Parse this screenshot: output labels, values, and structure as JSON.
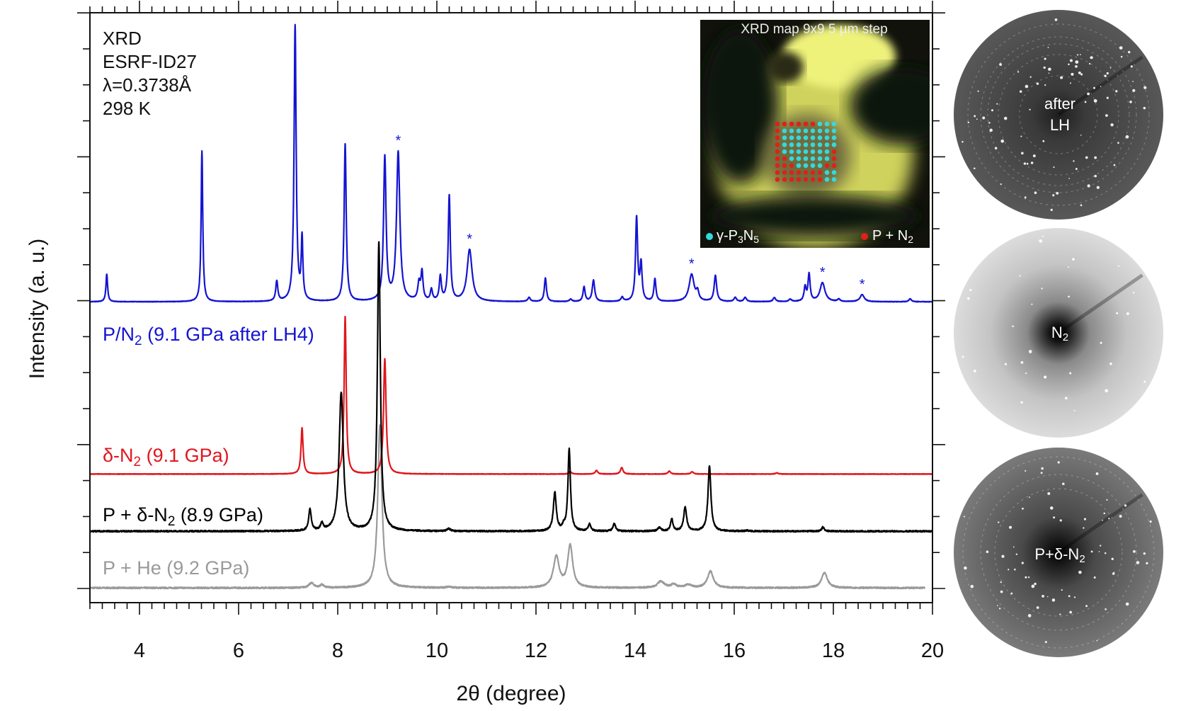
{
  "chart_data": {
    "type": "line",
    "title": "",
    "xlabel": "2θ (degree)",
    "ylabel": "Intensity (a. u.)",
    "xlim": [
      3,
      20
    ],
    "ylim": [
      0,
      100
    ],
    "grid": false,
    "xticks": [
      {
        "value": 4,
        "label": "4"
      },
      {
        "value": 6,
        "label": "6"
      },
      {
        "value": 8,
        "label": "8"
      },
      {
        "value": 10,
        "label": "10"
      },
      {
        "value": 12,
        "label": "12"
      },
      {
        "value": 14,
        "label": "14"
      },
      {
        "value": 16,
        "label": "16"
      },
      {
        "value": 18,
        "label": "18"
      },
      {
        "value": 20,
        "label": "20"
      }
    ],
    "info_lines": [
      "XRD",
      "ESRF-ID27",
      "λ=0.3738Å",
      "298 K"
    ],
    "series": [
      {
        "id": "p-he",
        "label_pre": "P + He (9.2 GPa)",
        "label_sub": "",
        "label_post": "",
        "color": "#9a9a9a",
        "offset": 2.5,
        "xmax": 19.85,
        "peaks": [
          [
            7.47,
            0.8,
            0.06
          ],
          [
            7.68,
            0.5,
            0.04
          ],
          [
            8.85,
            27.6,
            0.05
          ],
          [
            10.24,
            0.2,
            0.05
          ],
          [
            12.41,
            5.2,
            0.07
          ],
          [
            12.69,
            7.1,
            0.06
          ],
          [
            14.52,
            1.1,
            0.08
          ],
          [
            14.78,
            0.6,
            0.06
          ],
          [
            15.07,
            0.5,
            0.08
          ],
          [
            15.52,
            2.8,
            0.07
          ],
          [
            17.82,
            2.6,
            0.07
          ]
        ]
      },
      {
        "id": "p-delta-n2",
        "label_pre": "P + δ-N",
        "label_sub": "2",
        "label_post": " (8.9 GPa)",
        "color": "#000000",
        "offset": 12.1,
        "xmax": 20,
        "peaks": [
          [
            7.44,
            3.7,
            0.03
          ],
          [
            7.68,
            1.2,
            0.03
          ],
          [
            8.07,
            23.5,
            0.05
          ],
          [
            8.83,
            49.0,
            0.035
          ],
          [
            10.24,
            0.4,
            0.04
          ],
          [
            12.38,
            6.5,
            0.035
          ],
          [
            12.56,
            0.7,
            0.03
          ],
          [
            12.67,
            13.9,
            0.03
          ],
          [
            13.08,
            1.2,
            0.03
          ],
          [
            13.58,
            1.3,
            0.03
          ],
          [
            14.49,
            0.6,
            0.04
          ],
          [
            14.74,
            2.0,
            0.03
          ],
          [
            15.01,
            4.1,
            0.035
          ],
          [
            15.5,
            11.0,
            0.035
          ],
          [
            16.26,
            0.1,
            0.04
          ],
          [
            17.79,
            0.7,
            0.03
          ]
        ]
      },
      {
        "id": "delta-n2",
        "label_pre": "δ-N",
        "label_sub": "2",
        "label_post": " (9.1 GPa)",
        "color": "#e0161c",
        "offset": 21.8,
        "xmax": 20,
        "peaks": [
          [
            7.28,
            7.8,
            0.025
          ],
          [
            8.15,
            26.8,
            0.025
          ],
          [
            8.95,
            19.6,
            0.03
          ],
          [
            12.69,
            0.4,
            0.03
          ],
          [
            13.22,
            0.6,
            0.03
          ],
          [
            13.73,
            1.1,
            0.03
          ],
          [
            14.69,
            0.5,
            0.03
          ],
          [
            15.15,
            0.4,
            0.03
          ],
          [
            16.86,
            0.2,
            0.03
          ]
        ]
      },
      {
        "id": "p-n2-after-lh4",
        "label_pre": "P/N",
        "label_sub": "2",
        "label_post": " (9.1 GPa after LH4)",
        "color": "#1414d2",
        "offset": 51.0,
        "xmax": 20,
        "peaks": [
          [
            3.34,
            4.7,
            0.02
          ],
          [
            5.26,
            25.6,
            0.02
          ],
          [
            6.77,
            3.4,
            0.025
          ],
          [
            7.14,
            46.7,
            0.025
          ],
          [
            7.28,
            10.3,
            0.02
          ],
          [
            8.15,
            26.8,
            0.025
          ],
          [
            8.95,
            24.4,
            0.03
          ],
          [
            9.22,
            25.2,
            0.04
          ],
          [
            9.64,
            2.9,
            0.03
          ],
          [
            9.7,
            4.7,
            0.025
          ],
          [
            9.89,
            1.9,
            0.025
          ],
          [
            10.07,
            4.1,
            0.025
          ],
          [
            10.25,
            17.9,
            0.025
          ],
          [
            10.66,
            8.8,
            0.06
          ],
          [
            11.86,
            0.7,
            0.03
          ],
          [
            12.19,
            4.0,
            0.025
          ],
          [
            12.7,
            0.4,
            0.03
          ],
          [
            12.97,
            2.5,
            0.025
          ],
          [
            13.16,
            3.6,
            0.03
          ],
          [
            13.74,
            0.7,
            0.03
          ],
          [
            14.03,
            14.2,
            0.025
          ],
          [
            14.12,
            6.2,
            0.025
          ],
          [
            14.4,
            3.8,
            0.025
          ],
          [
            15.14,
            4.6,
            0.06
          ],
          [
            15.26,
            1.4,
            0.03
          ],
          [
            15.62,
            4.4,
            0.03
          ],
          [
            16.02,
            0.7,
            0.03
          ],
          [
            16.22,
            0.7,
            0.03
          ],
          [
            16.81,
            0.7,
            0.03
          ],
          [
            17.13,
            0.4,
            0.03
          ],
          [
            17.43,
            2.4,
            0.025
          ],
          [
            17.51,
            4.6,
            0.025
          ],
          [
            17.78,
            3.2,
            0.06
          ],
          [
            18.11,
            0.4,
            0.03
          ],
          [
            18.58,
            1.2,
            0.05
          ],
          [
            19.55,
            0.5,
            0.03
          ]
        ]
      }
    ],
    "asterisks": {
      "series": "p-n2-after-lh4",
      "text": "*",
      "positions": [
        9.22,
        10.66,
        15.14,
        17.78,
        18.58
      ]
    }
  },
  "inset": {
    "title": "XRD map 9x9 5 µm step",
    "legend": [
      {
        "pre": "γ-P",
        "sub1": "3",
        "mid": "N",
        "sub2": "5",
        "color": "#35d8e0"
      },
      {
        "pre": "P + N",
        "sub1": "2",
        "color": "#e0201a"
      }
    ],
    "map_rows": [
      "RRRRRRCCC",
      "RCCCCCCCC",
      "RCCCCCCCC",
      "RCCCCCCCC",
      "RCCCCCCCR",
      "RRCCCCCCR",
      "RRRCCCCRR",
      "RRRRRRRCC",
      "RRRRRRRCC"
    ]
  },
  "patterns": [
    {
      "line1": "after",
      "line2": "LH",
      "sub": ""
    },
    {
      "line1": "N",
      "line2": "",
      "sub": "2"
    },
    {
      "line1": "P+δ-N",
      "line2": "",
      "sub": "2"
    }
  ]
}
